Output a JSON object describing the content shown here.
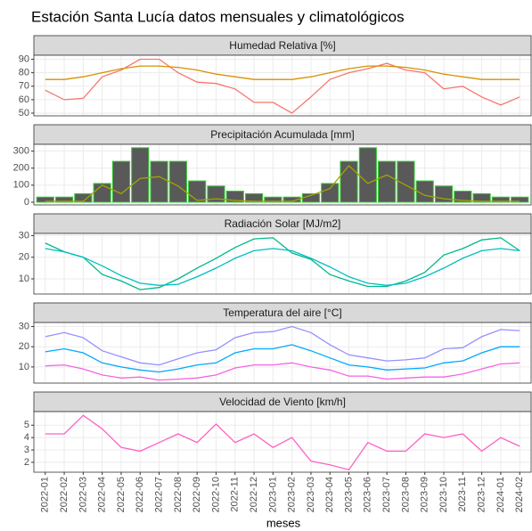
{
  "title": "Estación Santa Lucía datos mensuales y climatológicos",
  "x_label": "meses",
  "categories": [
    "2022-01",
    "2022-02",
    "2022-03",
    "2022-04",
    "2022-05",
    "2022-06",
    "2022-07",
    "2022-08",
    "2022-09",
    "2022-10",
    "2022-11",
    "2022-12",
    "2023-01",
    "2023-02",
    "2023-03",
    "2023-04",
    "2023-05",
    "2023-06",
    "2023-07",
    "2023-08",
    "2023-09",
    "2023-10",
    "2023-11",
    "2023-12",
    "2024-01",
    "2024-02"
  ],
  "chart_data": [
    {
      "type": "line",
      "title": "Humedad Relativa [%]",
      "ylim": [
        48,
        93
      ],
      "yticks": [
        50,
        60,
        70,
        80,
        90
      ],
      "grid": true,
      "series": [
        {
          "color": "#f8766d",
          "values": [
            67,
            60,
            61,
            77,
            82,
            90,
            90,
            80,
            73,
            72,
            68,
            58,
            58,
            50,
            62,
            75,
            80,
            83,
            87,
            82,
            80,
            68,
            70,
            62,
            56,
            62
          ]
        },
        {
          "color": "#d89000",
          "values": [
            75,
            75,
            77,
            80,
            83,
            85,
            85,
            84,
            82,
            79,
            77,
            75,
            75,
            75,
            77,
            80,
            83,
            85,
            85,
            84,
            82,
            79,
            77,
            75,
            75,
            75
          ]
        }
      ]
    },
    {
      "type": "combo",
      "title": "Precipitación Acumulada [mm]",
      "ylim": [
        -16,
        340
      ],
      "yticks": [
        0,
        100,
        200,
        300
      ],
      "grid": true,
      "series": [
        {
          "mark": "bar",
          "color": "#595959",
          "edgecolor": "#33cc33",
          "values": [
            30,
            30,
            50,
            110,
            240,
            320,
            240,
            240,
            125,
            95,
            65,
            50,
            30,
            30,
            50,
            110,
            240,
            320,
            240,
            240,
            125,
            95,
            65,
            50,
            30,
            30
          ]
        },
        {
          "mark": "line",
          "color": "#a3a500",
          "values": [
            5,
            5,
            5,
            100,
            50,
            140,
            150,
            95,
            10,
            20,
            10,
            5,
            5,
            5,
            40,
            80,
            215,
            110,
            160,
            100,
            40,
            20,
            10,
            5,
            5,
            5
          ]
        }
      ]
    },
    {
      "type": "line",
      "title": "Radiación Solar [MJ/m2]",
      "ylim": [
        3,
        31
      ],
      "yticks": [
        10,
        20,
        30
      ],
      "grid": true,
      "series": [
        {
          "color": "#00b88a",
          "values": [
            26.5,
            22.5,
            20,
            12,
            9,
            5,
            6,
            10,
            15,
            19.5,
            24.5,
            28.5,
            29,
            22,
            19,
            12,
            9,
            6.5,
            6.5,
            9,
            13,
            21,
            24,
            28,
            29,
            23
          ]
        },
        {
          "color": "#00bfc4",
          "values": [
            24,
            22.5,
            20,
            16,
            11.5,
            8,
            7,
            7.5,
            11,
            15,
            19.5,
            23,
            24,
            23,
            19.5,
            15.5,
            11,
            8,
            7,
            8,
            11,
            15,
            19.5,
            23,
            24,
            23
          ]
        }
      ]
    },
    {
      "type": "line",
      "title": "Temperatura del aire [°C]",
      "ylim": [
        2,
        32
      ],
      "yticks": [
        10,
        20,
        30
      ],
      "grid": true,
      "series": [
        {
          "color": "#9590ff",
          "values": [
            25,
            27,
            24.5,
            18,
            15,
            12,
            11,
            14,
            17,
            18.5,
            24.5,
            27,
            27.5,
            30,
            27,
            21,
            16,
            14.5,
            13,
            13.5,
            14.5,
            19,
            19.5,
            25,
            28.5,
            28
          ]
        },
        {
          "color": "#00a9ff",
          "values": [
            17.5,
            19,
            17,
            12,
            10,
            8.5,
            7.5,
            9,
            11,
            12,
            17,
            19,
            19,
            21,
            18,
            14.5,
            11,
            10,
            8.5,
            9,
            9.5,
            12,
            13,
            17,
            20,
            20
          ]
        },
        {
          "color": "#f564e3",
          "values": [
            10.5,
            11,
            9,
            6,
            4.5,
            5,
            3.5,
            4,
            4.5,
            6,
            9.5,
            11,
            11,
            12,
            10,
            8.5,
            5.5,
            5.5,
            4,
            4.5,
            5,
            5,
            6.5,
            9,
            11.5,
            12
          ]
        }
      ]
    },
    {
      "type": "line",
      "title": "Velocidad de Viento [km/h]",
      "ylim": [
        1.2,
        6.1
      ],
      "yticks": [
        2,
        3,
        4,
        5
      ],
      "grid": true,
      "series": [
        {
          "color": "#ff61c3",
          "values": [
            4.3,
            4.3,
            5.8,
            4.7,
            3.2,
            2.9,
            3.6,
            4.3,
            3.6,
            5.1,
            3.6,
            4.3,
            3.2,
            4.0,
            2.1,
            1.8,
            1.4,
            3.6,
            2.9,
            2.9,
            4.3,
            4.0,
            4.3,
            2.9,
            4.0,
            3.3
          ]
        }
      ]
    }
  ]
}
